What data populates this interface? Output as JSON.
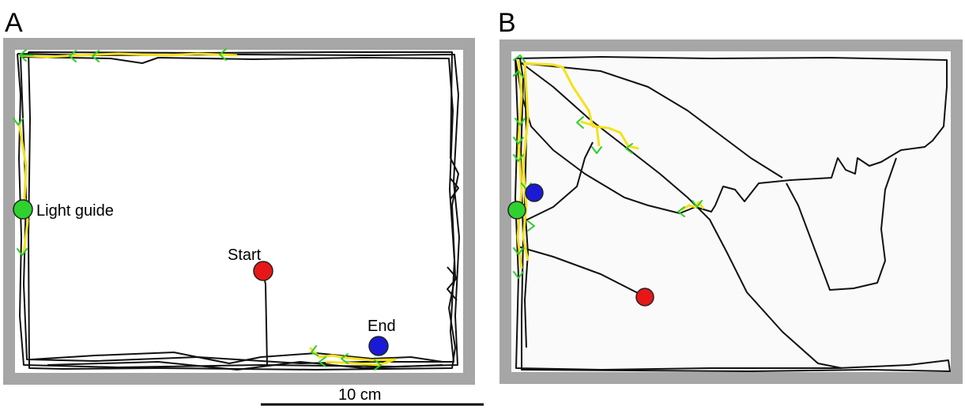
{
  "panels": {
    "a": {
      "label": "A",
      "annotations": {
        "light_guide": "Light guide",
        "start": "Start",
        "end": "End"
      }
    },
    "b": {
      "label": "B"
    }
  },
  "scale_bar": {
    "label": "10 cm"
  },
  "colors": {
    "arena_wall": "#a6a6a6",
    "arena_floor_a": "#ffffff",
    "arena_floor_b": "#fbfafa",
    "path": "#111111",
    "light_on_path": "#f4e21a",
    "direction_arrows": "#2ecc2e",
    "light_guide_marker": "#2fd12f",
    "start_marker": "#e81717",
    "end_marker": "#1a1ad6"
  }
}
